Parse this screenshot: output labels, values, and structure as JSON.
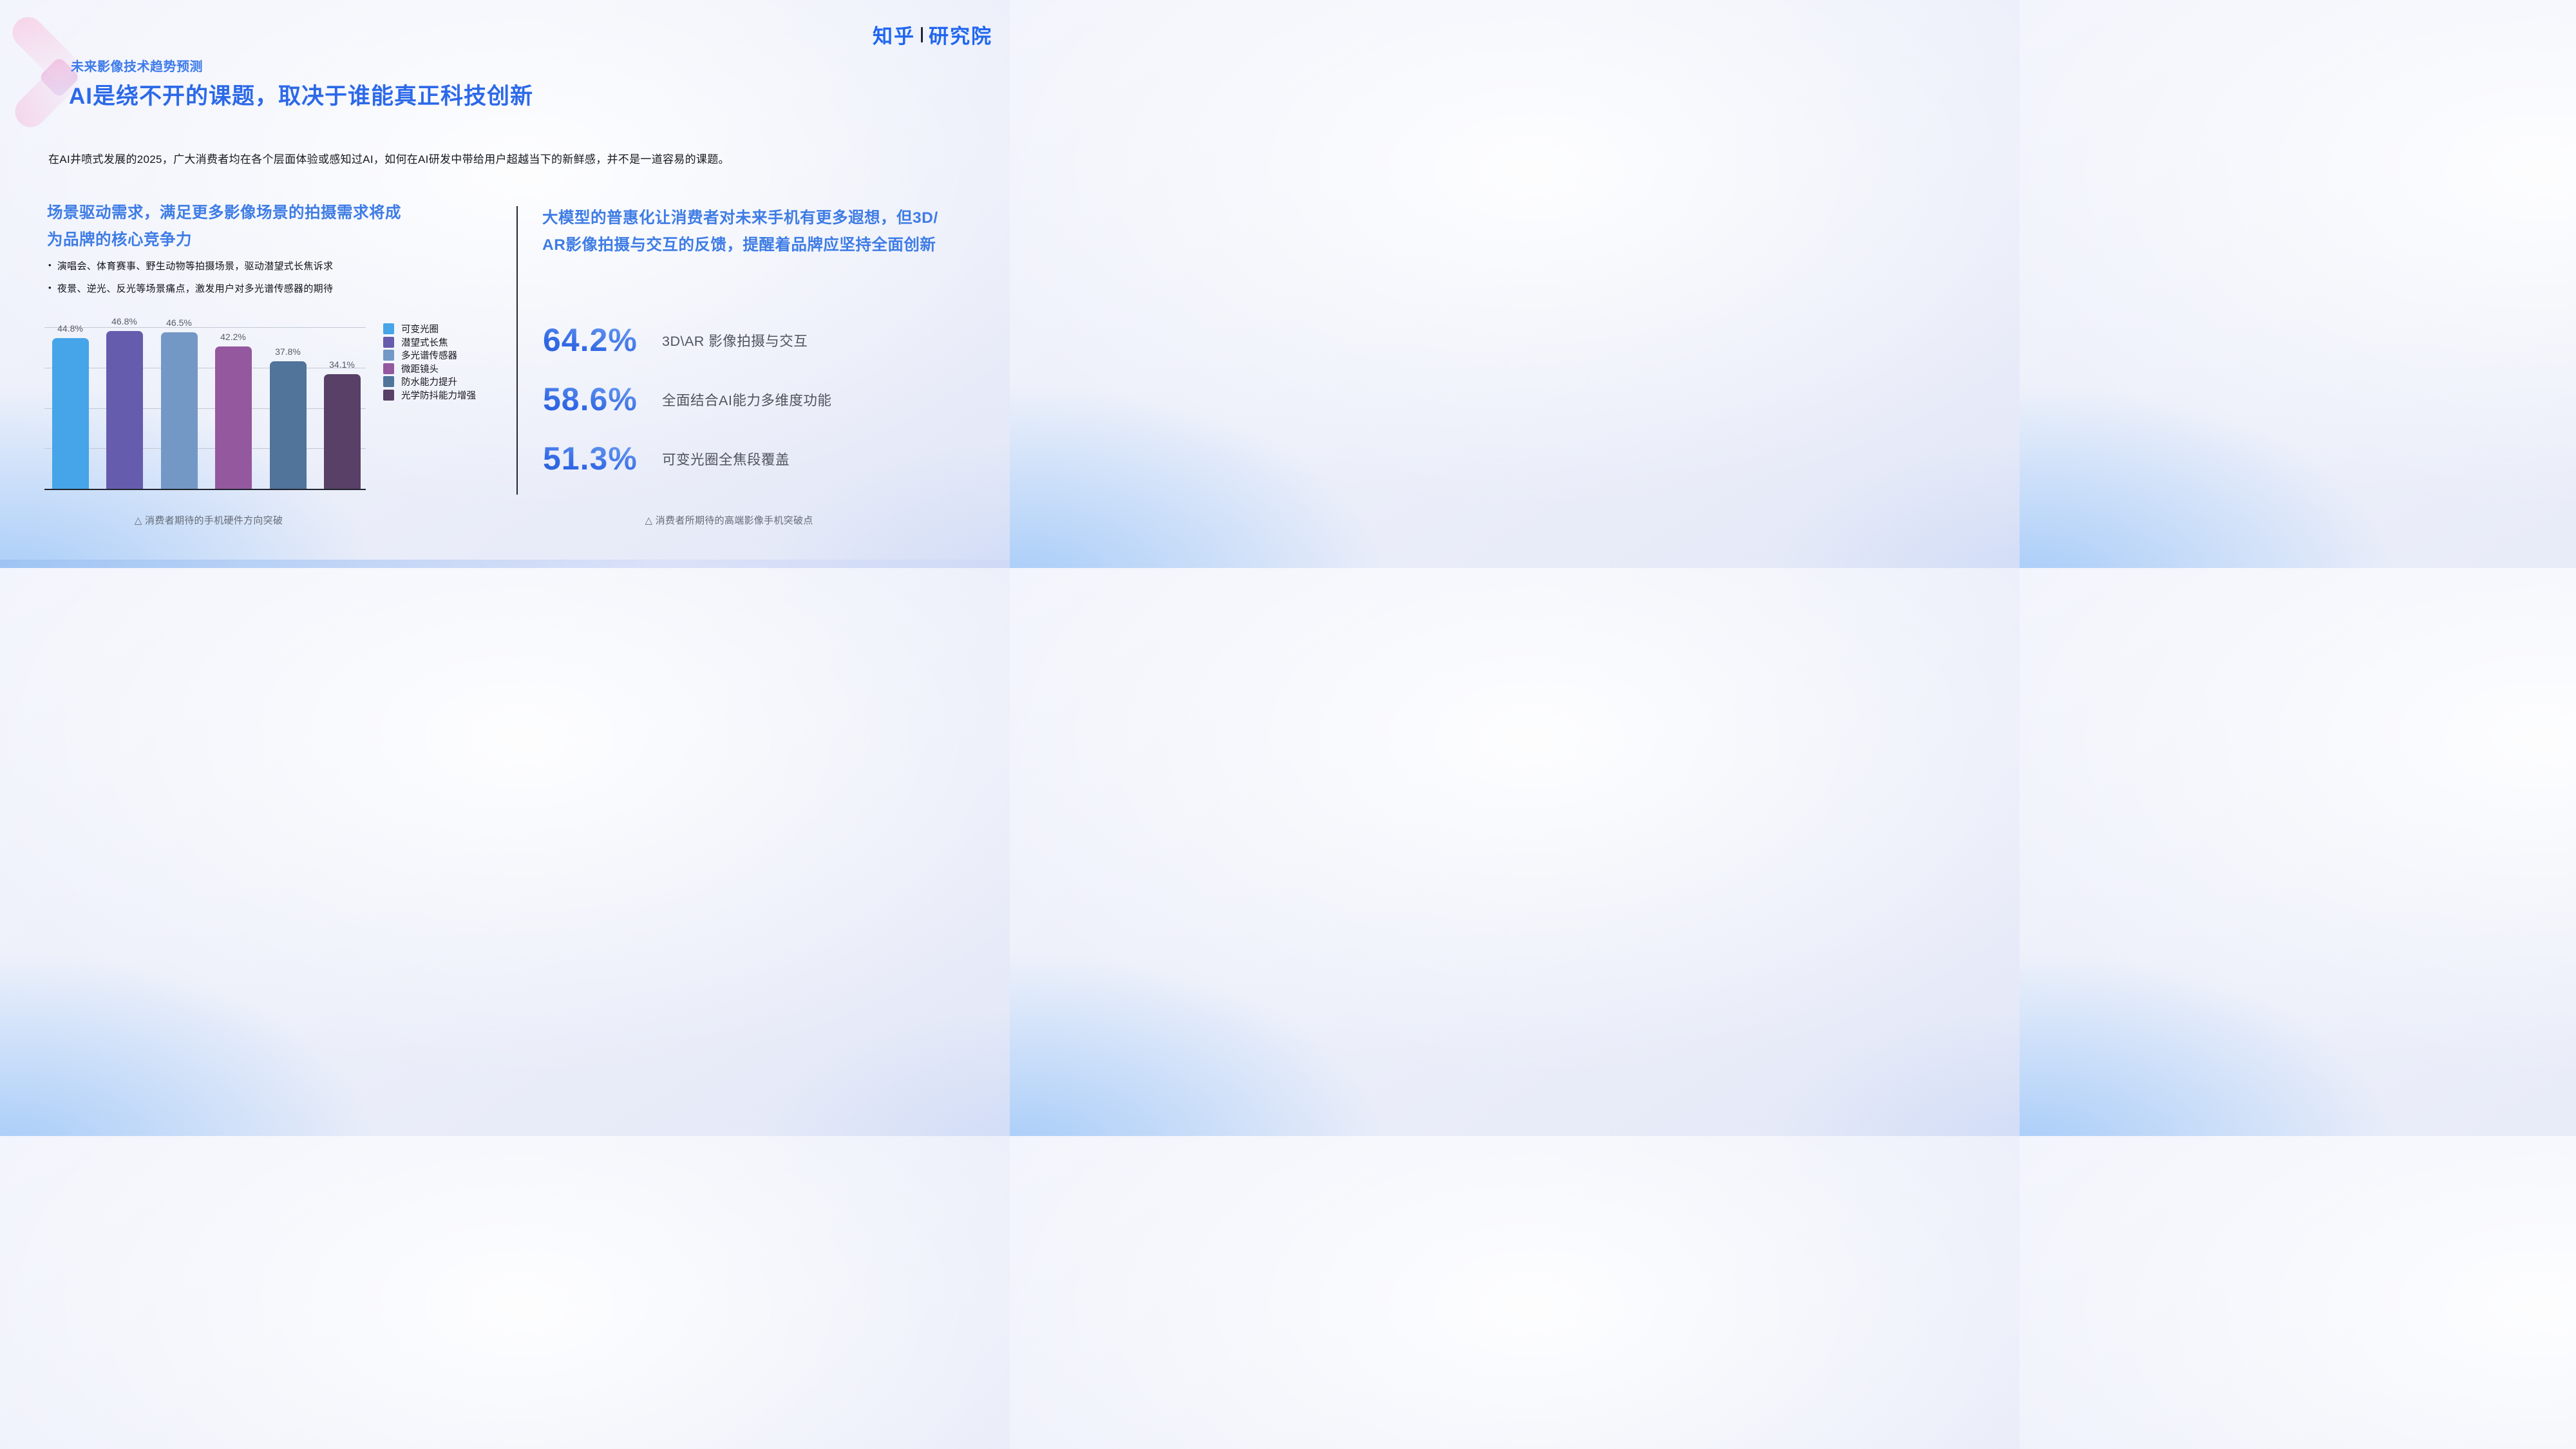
{
  "logo": {
    "brand": "知乎",
    "suffix": "研究院",
    "brand_color": "#2066f0"
  },
  "header": {
    "kicker": "未来影像技术趋势预测",
    "title": "AI是绕不开的课题，取决于谁能真正科技创新"
  },
  "intro": "在AI井喷式发展的2025，广大消费者均在各个层面体验或感知过AI，如何在AI研发中带给用户超越当下的新鲜感，并不是一道容易的课题。",
  "left_section": {
    "heading": "场景驱动需求，满足更多影像场景的拍摄需求将成\n为品牌的核心竞争力",
    "bullets": [
      "演唱会、体育赛事、野生动物等拍摄场景，驱动潜望式长焦诉求",
      "夜景、逆光、反光等场景痛点，激发用户对多光谱传感器的期待"
    ],
    "caption": "△ 消费者期待的手机硬件方向突破"
  },
  "right_section": {
    "heading": "大模型的普惠化让消费者对未来手机有更多遐想，但3D/\nAR影像拍摄与交互的反馈，提醒着品牌应坚持全面创新",
    "stats": [
      {
        "value": "64.2%",
        "label": "3D\\AR 影像拍摄与交互"
      },
      {
        "value": "58.6%",
        "label": "全面结合AI能力多维度功能"
      },
      {
        "value": "51.3%",
        "label": "可变光圈全焦段覆盖"
      }
    ],
    "caption": "△ 消费者所期待的高端影像手机突破点"
  },
  "chart_data": {
    "type": "bar",
    "title": "消费者期待的手机硬件方向突破",
    "categories": [
      "可变光圈",
      "潜望式长焦",
      "多光谱传感器",
      "微距镜头",
      "防水能力提升",
      "光学防抖能力增强"
    ],
    "values": [
      44.8,
      46.8,
      46.5,
      42.2,
      37.8,
      34.1
    ],
    "data_labels": [
      "44.8%",
      "46.8%",
      "46.5%",
      "42.2%",
      "37.8%",
      "34.1%"
    ],
    "unit": "%",
    "colors": [
      "#45a5e8",
      "#665cad",
      "#7398c6",
      "#94589e",
      "#50749a",
      "#584067"
    ],
    "ylim": [
      0,
      48
    ],
    "gridline_step": 12,
    "grid": true,
    "legend_position": "right",
    "xlabel": "",
    "ylabel": ""
  },
  "accent_colors": {
    "title_blue": "#2c69e8",
    "section_heading_blue": "#3e7ce5",
    "stat_gradient_top": "#7fadf5",
    "stat_gradient_bottom": "#2a5fd8"
  }
}
